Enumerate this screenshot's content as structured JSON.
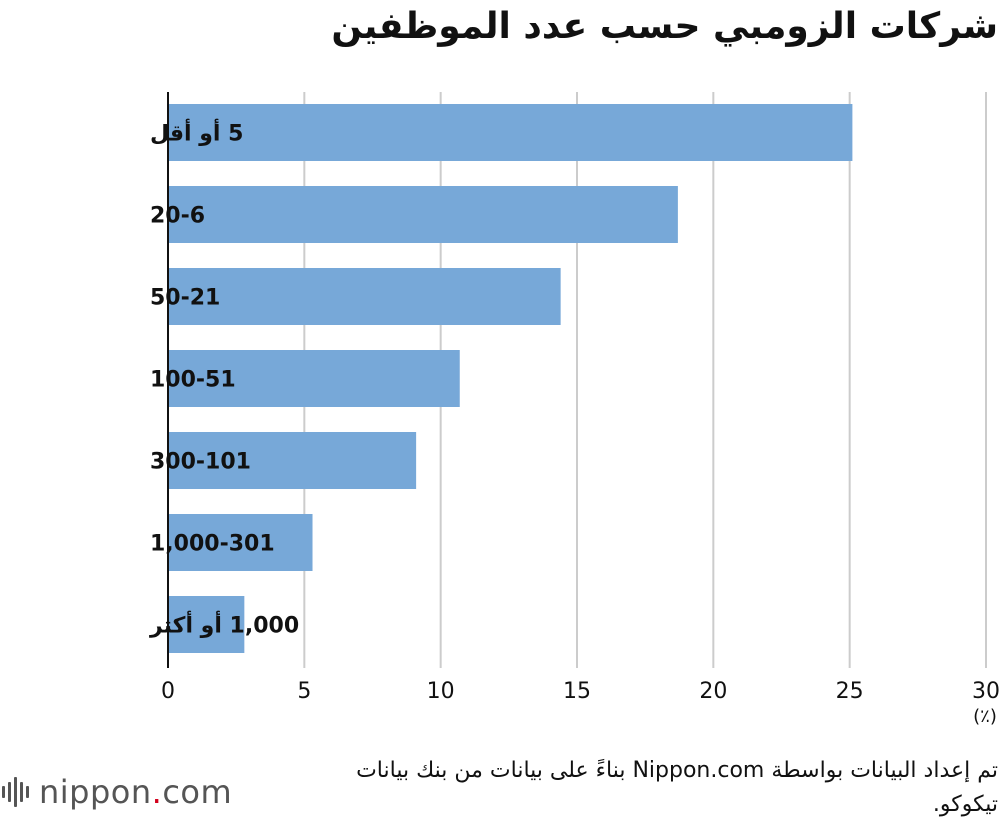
{
  "chart_data": {
    "type": "bar",
    "orientation": "horizontal",
    "title": "شركات الزومبي حسب عدد الموظفين",
    "categories": [
      "5 أو أقل",
      "20-6",
      "50-21",
      "100-51",
      "300-101",
      "1,000-301",
      "1,000 أو أكثر"
    ],
    "values": [
      25.1,
      18.7,
      14.4,
      10.7,
      9.1,
      5.3,
      2.8
    ],
    "xlim": [
      0,
      30
    ],
    "xticks": [
      0,
      5,
      10,
      15,
      20,
      25,
      30
    ],
    "unit": "(٪)",
    "grid": true,
    "bar_color": "#77a8d8",
    "grid_color": "#cccccc"
  },
  "source": "تم إعداد البيانات بواسطة Nippon.com بناءً على بيانات من بنك بيانات تيكوكو.",
  "logo": {
    "brand": "nippon",
    "dot": ".",
    "suffix": "com",
    "accent": "#d3001c"
  }
}
